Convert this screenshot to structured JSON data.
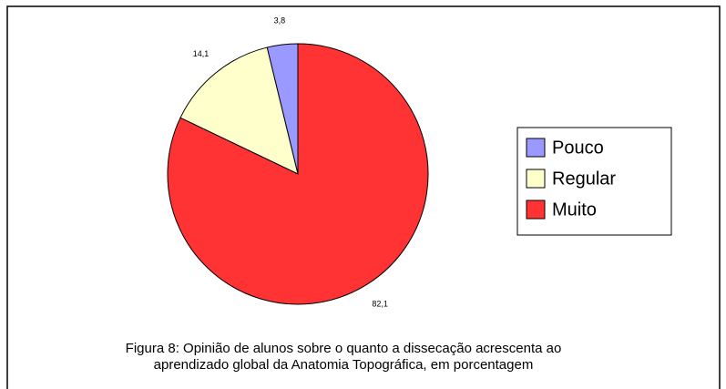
{
  "chart_data": {
    "type": "pie",
    "categories": [
      "Pouco",
      "Regular",
      "Muito"
    ],
    "values": [
      3.8,
      14.1,
      82.1
    ],
    "value_labels": [
      "3,8",
      "14,1",
      "82,1"
    ],
    "colors": [
      "#9999ff",
      "#ffffcc",
      "#ff3333"
    ],
    "caption": [
      "Figura 8: Opinião de alunos sobre o quanto a dissecação acrescenta ao",
      "aprendizado global da Anatomia Topográfica, em porcentagem"
    ],
    "legend": "right"
  }
}
